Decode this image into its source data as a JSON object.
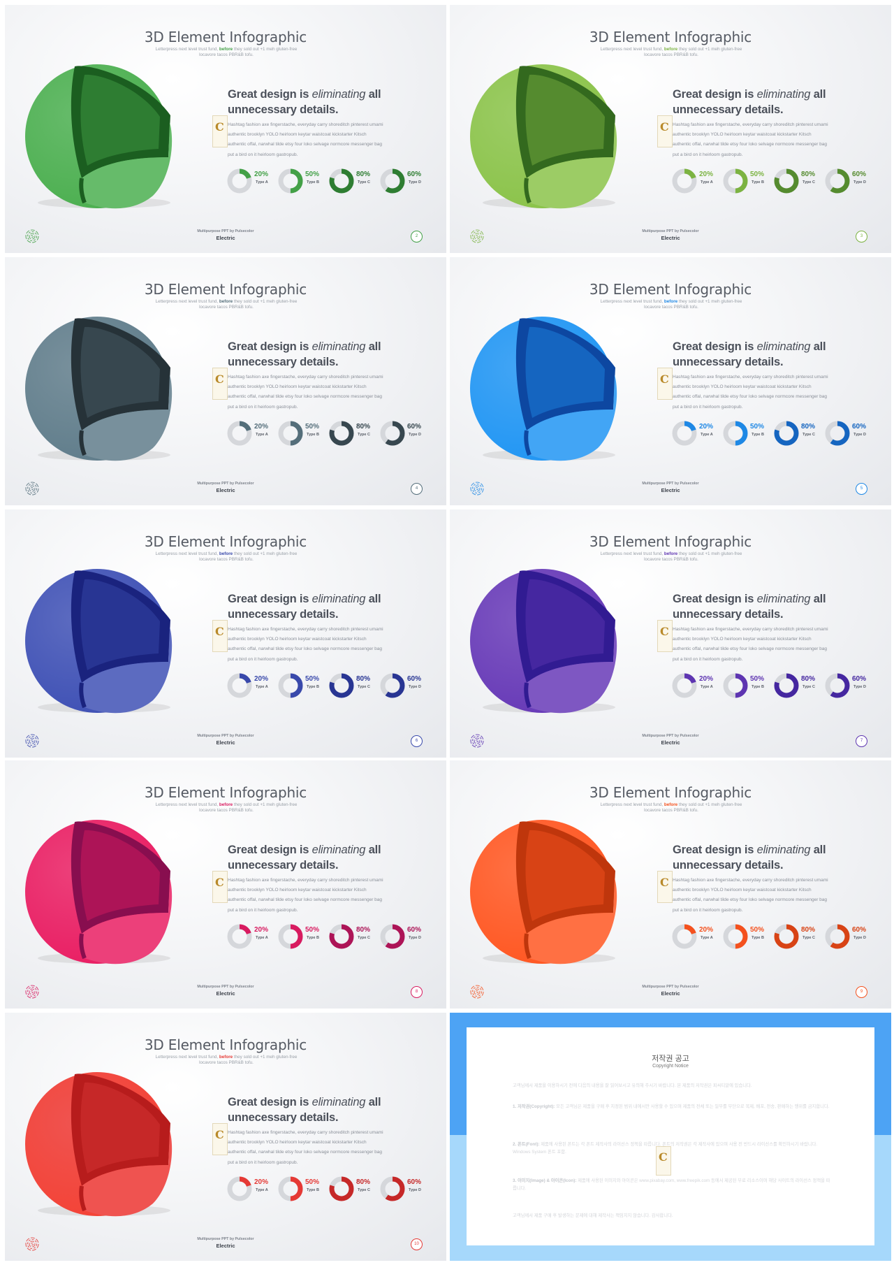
{
  "slide_common": {
    "title": "3D Element Infographic",
    "subtitle_pre": "Letterpress next level trust fund,",
    "subtitle_hl": "before",
    "subtitle_post": "they sold out +1 meh gluten-free",
    "subtitle_line2": "locavore tacos PBR&B tofu.",
    "headline_a": "Great design is",
    "headline_em": "eliminating",
    "headline_b": "all",
    "headline_line2": "unnecessary details.",
    "body_lines": [
      "Hashtag fashion axe fingerstache, everyday carry shoreditch pinterest umami",
      "authentic brooklyn YOLO heirloom keytar waistcoat kickstarter Kitsch",
      "authentic offal, narwhal tilde etsy four loko selvage normcore messenger bag",
      "put a bird on it heirloom gastropub."
    ],
    "logo_letter": "C",
    "footer_small": "Multipurpose PPT by Pulsecolor",
    "footer_brand": "Electric",
    "donuts": [
      {
        "value": 20,
        "label": "20%",
        "type": "Type A"
      },
      {
        "value": 50,
        "label": "50%",
        "type": "Type B"
      },
      {
        "value": 80,
        "label": "80%",
        "type": "Type C"
      },
      {
        "value": 60,
        "label": "60%",
        "type": "Type D"
      }
    ]
  },
  "slides": [
    {
      "page": "2",
      "colors": {
        "outer": "#4caf50",
        "inner": "#2e7d32",
        "cut": "#66bb6a",
        "dark": "#1b5e20",
        "accent": "#43a047",
        "accent_dark": "#2e7d32"
      }
    },
    {
      "page": "3",
      "colors": {
        "outer": "#8bc34a",
        "inner": "#558b2f",
        "cut": "#9ccc65",
        "dark": "#33691e",
        "accent": "#7cb342",
        "accent_dark": "#558b2f"
      }
    },
    {
      "page": "4",
      "colors": {
        "outer": "#607d8b",
        "inner": "#37474f",
        "cut": "#78909c",
        "dark": "#263238",
        "accent": "#546e7a",
        "accent_dark": "#37474f"
      }
    },
    {
      "page": "5",
      "colors": {
        "outer": "#2196f3",
        "inner": "#1565c0",
        "cut": "#42a5f5",
        "dark": "#0d47a1",
        "accent": "#1e88e5",
        "accent_dark": "#1565c0"
      }
    },
    {
      "page": "6",
      "colors": {
        "outer": "#3f51b5",
        "inner": "#283593",
        "cut": "#5c6bc0",
        "dark": "#1a237e",
        "accent": "#3949ab",
        "accent_dark": "#283593"
      }
    },
    {
      "page": "7",
      "colors": {
        "outer": "#673ab7",
        "inner": "#4527a0",
        "cut": "#7e57c2",
        "dark": "#311b92",
        "accent": "#5e35b1",
        "accent_dark": "#4527a0"
      }
    },
    {
      "page": "8",
      "colors": {
        "outer": "#e91e63",
        "inner": "#ad1457",
        "cut": "#ec407a",
        "dark": "#880e4f",
        "accent": "#d81b60",
        "accent_dark": "#ad1457"
      }
    },
    {
      "page": "9",
      "colors": {
        "outer": "#ff5722",
        "inner": "#d84315",
        "cut": "#ff7043",
        "dark": "#bf360c",
        "accent": "#f4511e",
        "accent_dark": "#d84315"
      }
    },
    {
      "page": "10",
      "colors": {
        "outer": "#f44336",
        "inner": "#c62828",
        "cut": "#ef5350",
        "dark": "#b71c1c",
        "accent": "#e53935",
        "accent_dark": "#c62828"
      }
    }
  ],
  "copyright": {
    "title": "저작권 공고",
    "subtitle": "Copyright Notice",
    "intro": "고객님께서 제품을 이용하시기 전에 다음의 내용을 잘 읽어보시고 유의해 주시기 바랍니다. 본 제품의 저작권은 피씨티알에 있습니다.",
    "p1_head": "1. 저작권(Copyright):",
    "p1": "모든 고객님은 제품을 구매 후 지정된 범위 내에서만 사용할 수 있으며 제품의 전체 또는 일부를 무단으로 복제, 배포, 전송, 판매하는 행위를 금지합니다.",
    "p2_head": "2. 폰트(Font):",
    "p2": "제품에 사용된 폰트는 각 폰트 제작사의 라이선스 정책을 따릅니다. 폰트의 저작권은 각 제작사에 있으며 사용 전 반드시 라이선스를 확인하시기 바랍니다. Windows System 폰트 포함.",
    "p3_head": "3. 이미지(Image) & 아이콘(Icon):",
    "p3": "제품에 사용된 이미지와 아이콘은 www.pixabay.com, www.freepik.com 등에서 제공된 무료 리소스이며 해당 사이트의 라이선스 정책을 따릅니다.",
    "outro": "고객님께서 제품 구매 후 발생하는 문제에 대해 제작사는 책임지지 않습니다. 감사합니다."
  }
}
